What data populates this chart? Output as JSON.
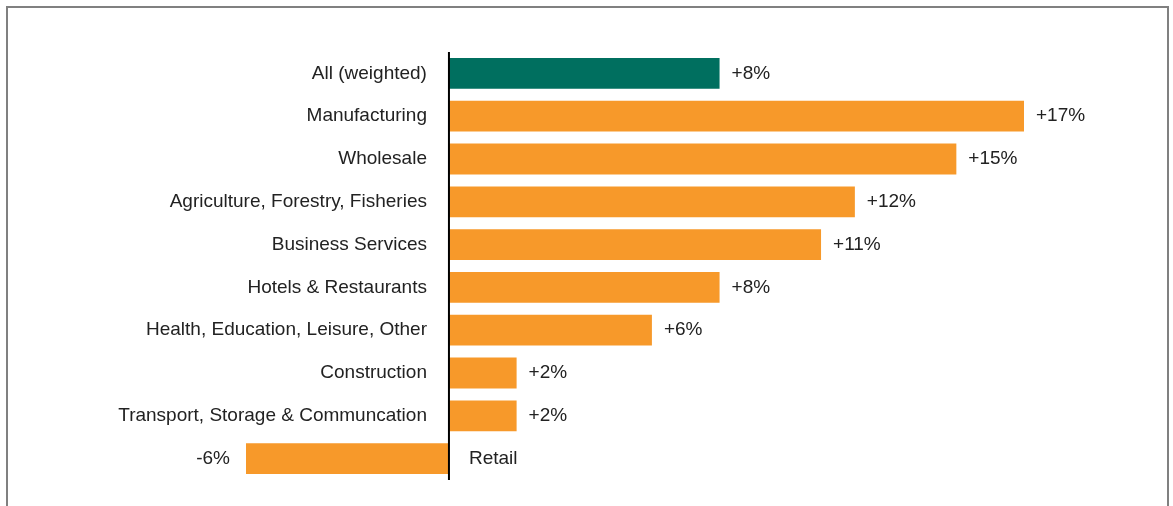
{
  "chart_data": {
    "type": "bar",
    "orientation": "horizontal",
    "categories": [
      "All (weighted)",
      "Manufacturing",
      "Wholesale",
      "Agriculture, Forestry, Fisheries",
      "Business Services",
      "Hotels & Restaurants",
      "Health, Education, Leisure, Other",
      "Construction",
      "Transport, Storage & Communcation",
      "Retail"
    ],
    "values": [
      8,
      17,
      15,
      12,
      11,
      8,
      6,
      2,
      2,
      -6
    ],
    "colors": [
      "#006f5f",
      "#f7992a",
      "#f7992a",
      "#f7992a",
      "#f7992a",
      "#f7992a",
      "#f7992a",
      "#f7992a",
      "#f7992a",
      "#f7992a"
    ],
    "value_labels": [
      "+8%",
      "+17%",
      "+15%",
      "+12%",
      "+11%",
      "+8%",
      "+6%",
      "+2%",
      "+2%",
      "-6%"
    ],
    "legend": false
  }
}
